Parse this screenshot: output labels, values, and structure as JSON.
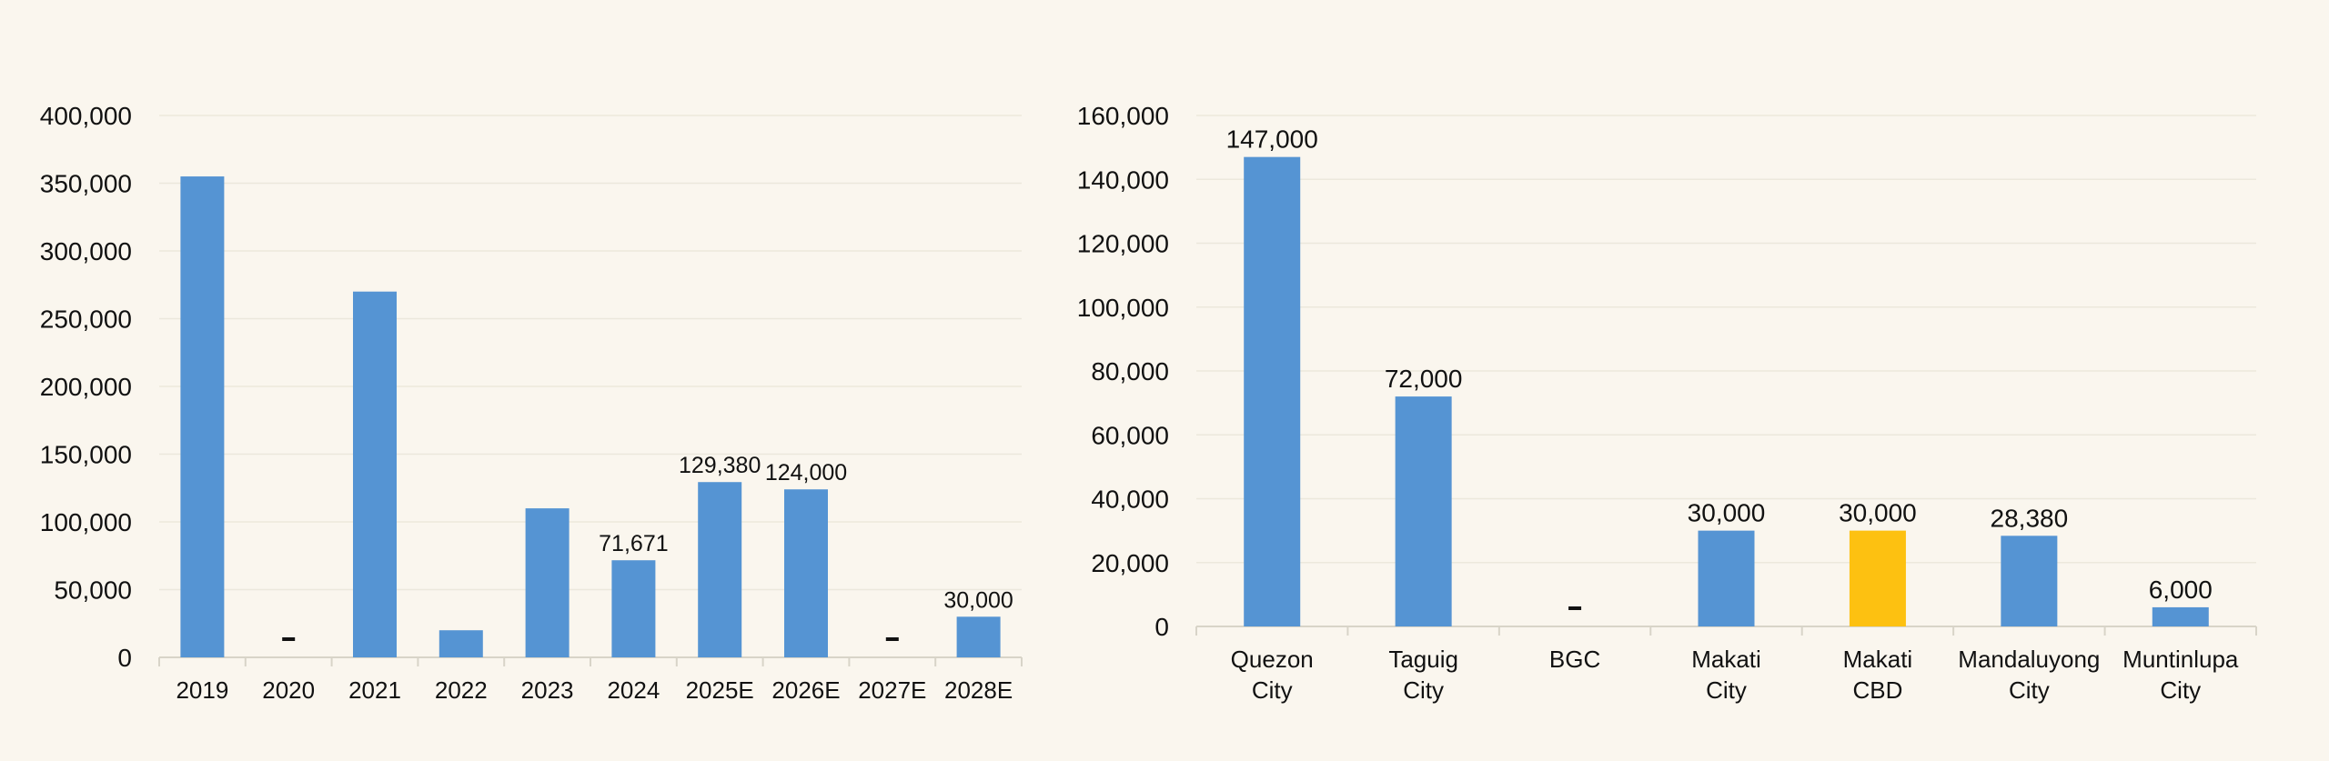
{
  "chart_data": [
    {
      "type": "bar",
      "categories": [
        "2019",
        "2020",
        "2021",
        "2022",
        "2023",
        "2024",
        "2025E",
        "2026E",
        "2027E",
        "2028E"
      ],
      "values": [
        355000,
        0,
        270000,
        20000,
        110000,
        71671,
        129380,
        124000,
        0,
        30000
      ],
      "data_labels": [
        "",
        "-",
        "",
        "",
        "",
        "71,671",
        "129,380",
        "124,000",
        "-",
        "30,000"
      ],
      "ylim": [
        0,
        400000
      ],
      "yticks": [
        0,
        50000,
        100000,
        150000,
        200000,
        250000,
        300000,
        350000,
        400000
      ],
      "ytick_labels": [
        "0",
        "50,000",
        "100,000",
        "150,000",
        "200,000",
        "250,000",
        "300,000",
        "350,000",
        "400,000"
      ],
      "bar_color": "#5594d3",
      "grid": true
    },
    {
      "type": "bar",
      "categories": [
        [
          "Quezon",
          "City"
        ],
        [
          "Taguig",
          "City"
        ],
        [
          "BGC"
        ],
        [
          "Makati",
          "City"
        ],
        [
          "Makati",
          "CBD"
        ],
        [
          "Mandaluyong",
          "City"
        ],
        [
          "Muntinlupa",
          "City"
        ]
      ],
      "values": [
        147000,
        72000,
        0,
        30000,
        30000,
        28380,
        6000
      ],
      "data_labels": [
        "147,000",
        "72,000",
        "-",
        "30,000",
        "30,000",
        "28,380",
        "6,000"
      ],
      "bar_colors": [
        "#5594d3",
        "#5594d3",
        "#5594d3",
        "#5594d3",
        "#fdc111",
        "#5594d3",
        "#5594d3"
      ],
      "ylim": [
        0,
        160000
      ],
      "yticks": [
        0,
        20000,
        40000,
        60000,
        80000,
        100000,
        120000,
        140000,
        160000
      ],
      "ytick_labels": [
        "0",
        "20,000",
        "40,000",
        "60,000",
        "80,000",
        "100,000",
        "120,000",
        "140,000",
        "160,000"
      ],
      "grid": true
    }
  ]
}
